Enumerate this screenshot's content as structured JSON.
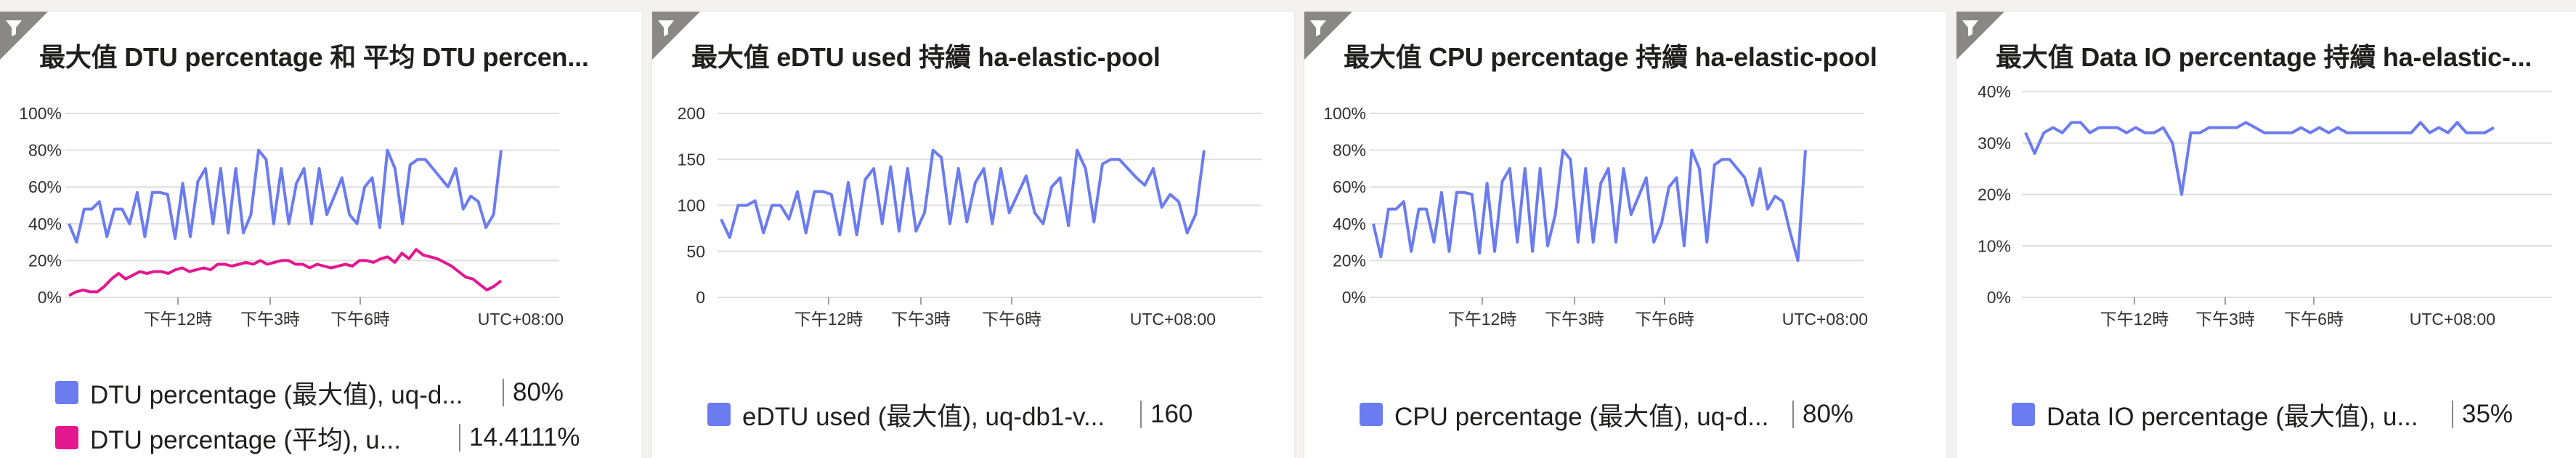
{
  "colors": {
    "blue": "#6b7cf0",
    "magenta": "#e3188f"
  },
  "tiles": [
    {
      "title": "最大值 DTU percentage 和 平均 DTU percen...",
      "filter_icon": "filter-icon",
      "legend": [
        {
          "name": "DTU percentage (最大值), uq-d...",
          "value": "80%",
          "color": "#6b7cf0"
        },
        {
          "name": "DTU percentage (平均), u...",
          "value": "14.4111%",
          "color": "#e3188f"
        }
      ]
    },
    {
      "title": "最大值 eDTU used 持續 ha-elastic-pool",
      "filter_icon": "filter-icon",
      "legend": [
        {
          "name": "eDTU used (最大值), uq-db1-v...",
          "value": "160",
          "color": "#6b7cf0"
        }
      ]
    },
    {
      "title": "最大值 CPU percentage 持續 ha-elastic-pool",
      "filter_icon": "filter-icon",
      "legend": [
        {
          "name": "CPU percentage (最大值), uq-d...",
          "value": "80%",
          "color": "#6b7cf0"
        }
      ]
    },
    {
      "title": "最大值 Data IO percentage 持續 ha-elastic-...",
      "filter_icon": "filter-icon",
      "legend": [
        {
          "name": "Data IO percentage (最大值), u...",
          "value": "35%",
          "color": "#6b7cf0"
        }
      ]
    }
  ],
  "chart_data": [
    {
      "type": "line",
      "ylim": [
        0,
        100
      ],
      "yticks": [
        "0%",
        "20%",
        "40%",
        "60%",
        "80%",
        "100%"
      ],
      "ytick_values": [
        0,
        20,
        40,
        60,
        80,
        100
      ],
      "xticks": [
        "下午12時",
        "下午3時",
        "下午6時"
      ],
      "timezone": "UTC+08:00",
      "series": [
        {
          "name": "DTU percentage (最大值)",
          "color": "#6b7cf0",
          "values": [
            40,
            30,
            48,
            48,
            52,
            33,
            48,
            48,
            40,
            57,
            33,
            57,
            57,
            56,
            32,
            62,
            33,
            63,
            70,
            40,
            70,
            35,
            70,
            35,
            45,
            80,
            75,
            40,
            70,
            40,
            62,
            70,
            40,
            70,
            45,
            55,
            65,
            45,
            40,
            60,
            65,
            38,
            80,
            70,
            40,
            72,
            75,
            75,
            70,
            65,
            60,
            70,
            48,
            55,
            52,
            38,
            45,
            80
          ]
        },
        {
          "name": "DTU percentage (平均)",
          "color": "#e3188f",
          "values": [
            1,
            3,
            4,
            3,
            3,
            6,
            10,
            13,
            10,
            12,
            14,
            13,
            14,
            14,
            13,
            15,
            16,
            14,
            15,
            16,
            15,
            18,
            18,
            17,
            18,
            19,
            18,
            20,
            18,
            19,
            20,
            20,
            18,
            18,
            16,
            18,
            17,
            16,
            17,
            18,
            17,
            20,
            20,
            19,
            21,
            22,
            19,
            24,
            21,
            26,
            23,
            22,
            21,
            19,
            17,
            14,
            11,
            10,
            7,
            4,
            6,
            9
          ]
        }
      ]
    },
    {
      "type": "line",
      "ylim": [
        0,
        200
      ],
      "yticks": [
        "0",
        "50",
        "100",
        "150",
        "200"
      ],
      "ytick_values": [
        0,
        50,
        100,
        150,
        200
      ],
      "xticks": [
        "下午12時",
        "下午3時",
        "下午6時"
      ],
      "timezone": "UTC+08:00",
      "series": [
        {
          "name": "eDTU used (最大值)",
          "color": "#6b7cf0",
          "values": [
            85,
            65,
            100,
            100,
            105,
            70,
            100,
            100,
            85,
            115,
            70,
            115,
            115,
            112,
            68,
            125,
            68,
            128,
            140,
            80,
            142,
            72,
            140,
            72,
            92,
            160,
            152,
            80,
            140,
            82,
            125,
            140,
            80,
            140,
            92,
            112,
            132,
            92,
            80,
            120,
            130,
            78,
            160,
            140,
            82,
            145,
            150,
            150,
            140,
            130,
            122,
            140,
            98,
            112,
            104,
            70,
            90,
            160
          ]
        }
      ]
    },
    {
      "type": "line",
      "ylim": [
        0,
        100
      ],
      "yticks": [
        "0%",
        "20%",
        "40%",
        "60%",
        "80%",
        "100%"
      ],
      "ytick_values": [
        0,
        20,
        40,
        60,
        80,
        100
      ],
      "xticks": [
        "下午12時",
        "下午3時",
        "下午6時"
      ],
      "timezone": "UTC+08:00",
      "series": [
        {
          "name": "CPU percentage (最大值)",
          "color": "#6b7cf0",
          "values": [
            40,
            22,
            48,
            48,
            52,
            25,
            48,
            48,
            30,
            57,
            25,
            57,
            57,
            56,
            24,
            62,
            25,
            63,
            70,
            30,
            70,
            25,
            70,
            28,
            45,
            80,
            75,
            30,
            70,
            30,
            62,
            70,
            30,
            70,
            45,
            55,
            65,
            30,
            40,
            60,
            65,
            28,
            80,
            70,
            30,
            72,
            75,
            75,
            70,
            65,
            50,
            70,
            48,
            55,
            52,
            35,
            20,
            80
          ]
        }
      ]
    },
    {
      "type": "line",
      "ylim": [
        0,
        40
      ],
      "yticks": [
        "0%",
        "10%",
        "20%",
        "30%",
        "40%"
      ],
      "ytick_values": [
        0,
        10,
        20,
        30,
        40
      ],
      "xticks": [
        "下午12時",
        "下午3時",
        "下午6時"
      ],
      "timezone": "UTC+08:00",
      "series": [
        {
          "name": "Data IO percentage (最大值)",
          "color": "#6b7cf0",
          "values": [
            32,
            28,
            32,
            33,
            32,
            34,
            34,
            32,
            33,
            33,
            33,
            32,
            33,
            32,
            32,
            33,
            30,
            20,
            32,
            32,
            33,
            33,
            33,
            33,
            34,
            33,
            32,
            32,
            32,
            32,
            33,
            32,
            33,
            32,
            33,
            32,
            32,
            32,
            32,
            32,
            32,
            32,
            32,
            34,
            32,
            33,
            32,
            34,
            32,
            32,
            32,
            33
          ]
        }
      ]
    }
  ]
}
